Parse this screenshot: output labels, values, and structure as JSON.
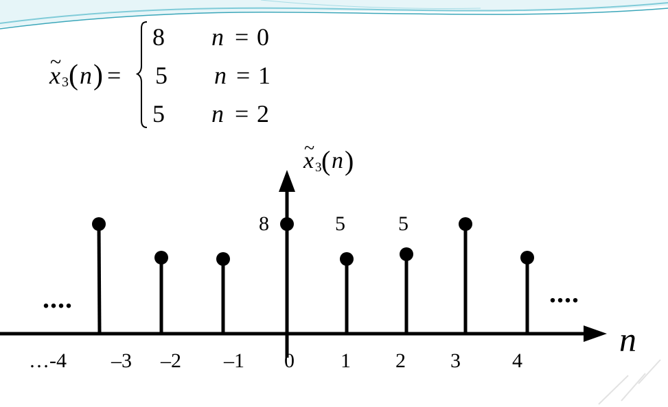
{
  "formula": {
    "lhs": {
      "symbol": "x",
      "tilde": "~",
      "sub": "3",
      "arg": "n",
      "eq": "="
    },
    "cases": [
      {
        "value": "8",
        "var": "n",
        "eq": "=",
        "n": "0"
      },
      {
        "value": "5",
        "var": "n",
        "eq": "=",
        "n": "1"
      },
      {
        "value": "5",
        "var": "n",
        "eq": "=",
        "n": "2"
      }
    ]
  },
  "plot": {
    "y_label": {
      "symbol": "x",
      "tilde": "~",
      "sub": "3",
      "arg": "n"
    },
    "x_label": "n",
    "left_ellipsis": "....",
    "right_ellipsis": "....",
    "tick_labels": [
      "…-4",
      "–3",
      "–2",
      "–1",
      "0",
      "1",
      "2",
      "3",
      "4"
    ],
    "value_labels": [
      "8",
      "5",
      "5"
    ],
    "stems": [
      {
        "n": -3,
        "value": 8
      },
      {
        "n": -2,
        "value": 5
      },
      {
        "n": -1,
        "value": 5
      },
      {
        "n": 0,
        "value": 8
      },
      {
        "n": 1,
        "value": 5
      },
      {
        "n": 2,
        "value": 5
      },
      {
        "n": 3,
        "value": 8
      },
      {
        "n": 4,
        "value": 5
      }
    ]
  },
  "colors": {
    "ink": "#000000",
    "wave_teal": "#3aa6b9",
    "wave_light": "#bfe6ee",
    "watermark": "#e4e4e4"
  }
}
